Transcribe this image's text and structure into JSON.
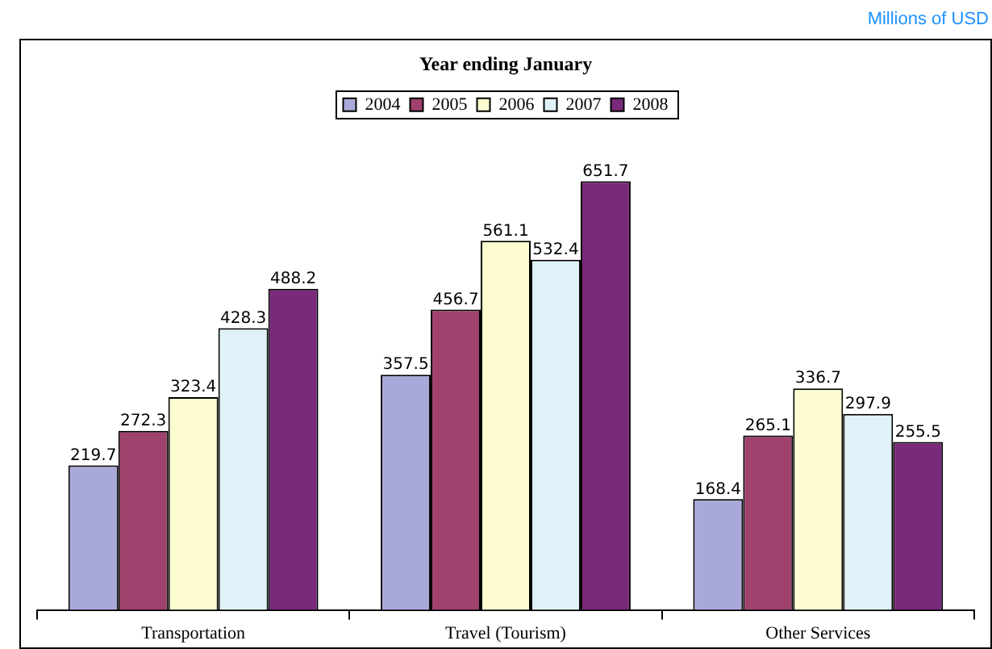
{
  "chart_data": {
    "type": "bar",
    "title": "Year ending January",
    "categories": [
      "Transportation",
      "Travel (Tourism)",
      "Other Services"
    ],
    "series": [
      {
        "name": "2004",
        "color": "#a9a9d9",
        "values": [
          219.7,
          357.5,
          168.4
        ]
      },
      {
        "name": "2005",
        "color": "#a0426e",
        "values": [
          272.3,
          456.7,
          265.1
        ]
      },
      {
        "name": "2006",
        "color": "#fdfcd0",
        "values": [
          323.4,
          561.1,
          336.7
        ]
      },
      {
        "name": "2007",
        "color": "#dff2f7",
        "values": [
          428.3,
          532.4,
          297.9
        ]
      },
      {
        "name": "2008",
        "color": "#7a2a7a",
        "values": [
          488.2,
          651.7,
          255.5
        ]
      }
    ],
    "data_labels": true,
    "legend": "top",
    "annotations": [
      "Millions of USD"
    ]
  }
}
